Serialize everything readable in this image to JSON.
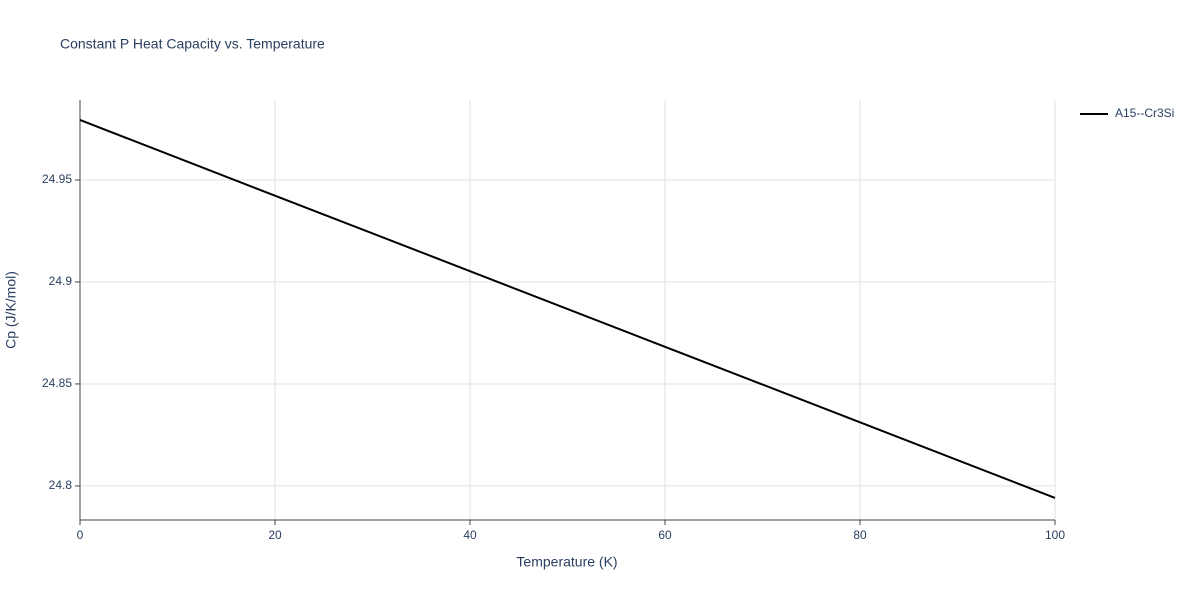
{
  "chart_data": {
    "type": "line",
    "title": "Constant P Heat Capacity vs. Temperature",
    "x_label": "Temperature (K)",
    "y_label": "Cp (J/K/mol)",
    "x": [
      0,
      20,
      40,
      60,
      80,
      100
    ],
    "series": [
      {
        "name": "A15--Cr3Si",
        "color": "#000000",
        "values": [
          24.9794,
          24.9423,
          24.9053,
          24.8682,
          24.8312,
          24.7941
        ]
      }
    ],
    "xlim": [
      0,
      100
    ],
    "xticks": [
      0,
      20,
      40,
      60,
      80,
      100
    ],
    "ylim": [
      24.7833,
      24.9892
    ],
    "yticks": [
      24.8,
      24.85,
      24.9,
      24.95
    ],
    "grid": true,
    "legend": "right"
  }
}
